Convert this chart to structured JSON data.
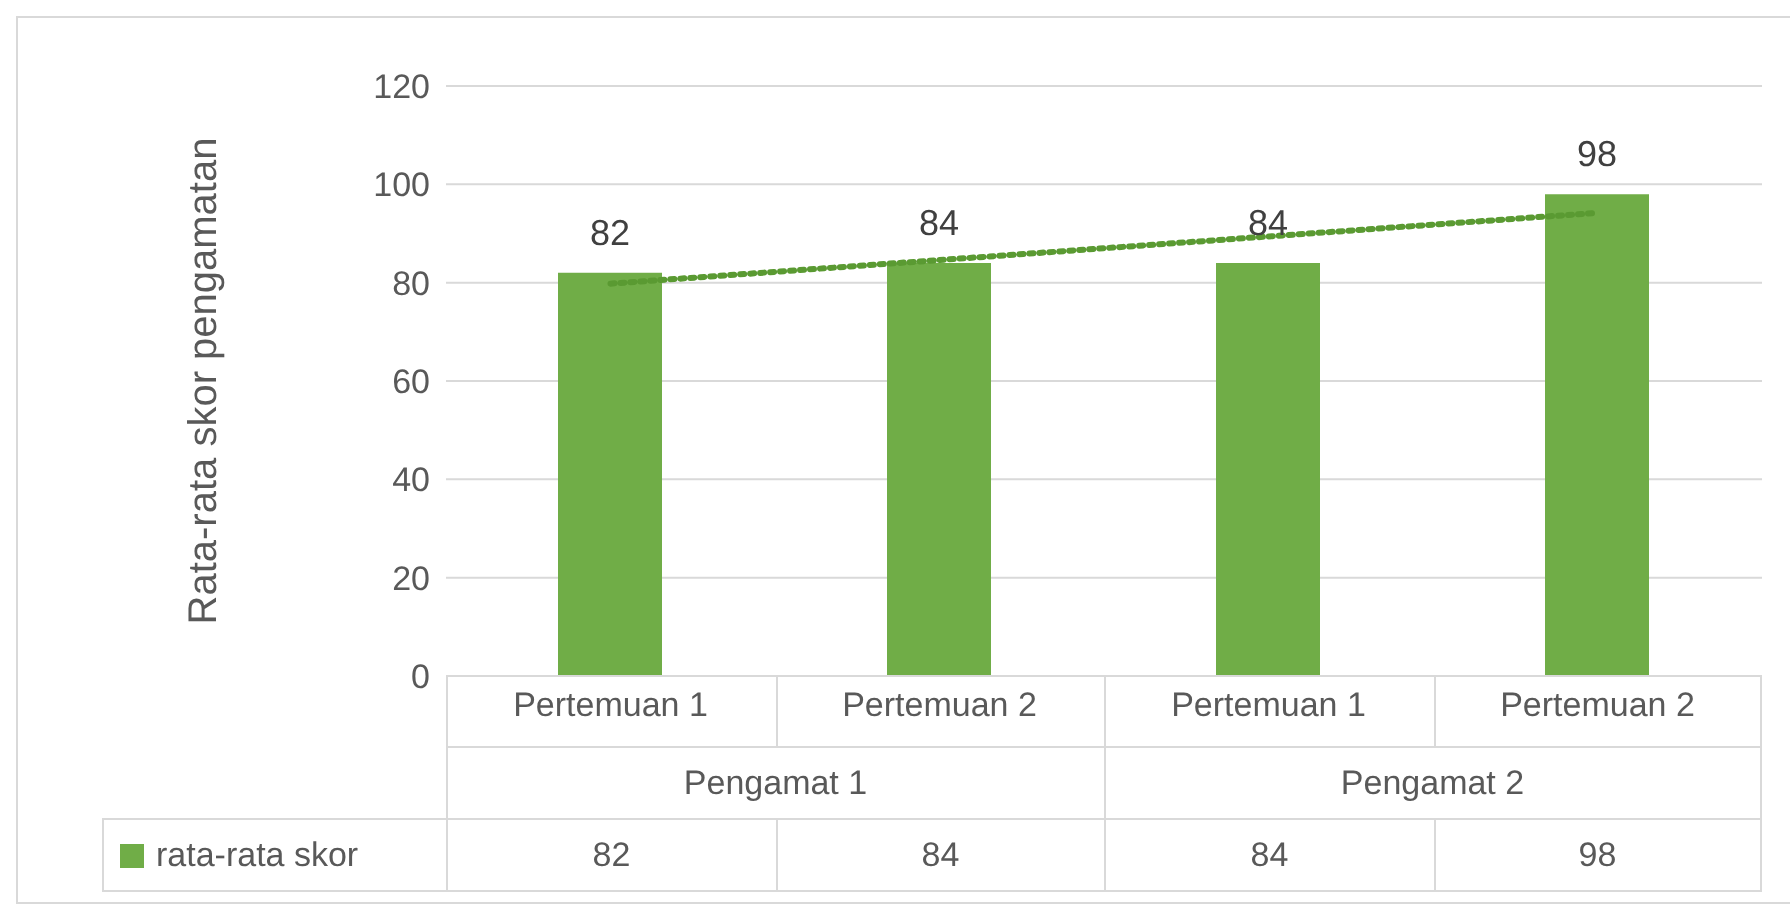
{
  "chart_data": {
    "type": "bar",
    "ylabel": "Rata-rata skor pengamatan",
    "categories": [
      "Pertemuan 1",
      "Pertemuan 2",
      "Pertemuan 1",
      "Pertemuan 2"
    ],
    "annotations": [
      "Pengamat 1",
      "Pengamat 2",
      "82",
      "84",
      "84",
      "98"
    ],
    "series": [
      {
        "name": "rata-rata skor",
        "color": "#70ad47",
        "values": [
          82,
          84,
          84,
          98
        ],
        "value_labels": [
          "82",
          "84",
          "84",
          "98"
        ]
      },
      {
        "type": "line",
        "color": "#5a9a32",
        "values": [
          79.8,
          84.6,
          89.4,
          94.2
        ],
        "line_style": "dotted",
        "marker": "none"
      }
    ],
    "ylim": [
      0,
      120
    ],
    "yticks": [
      0,
      20,
      40,
      60,
      80,
      100,
      120
    ],
    "grid": "y",
    "legend": "bottom"
  }
}
